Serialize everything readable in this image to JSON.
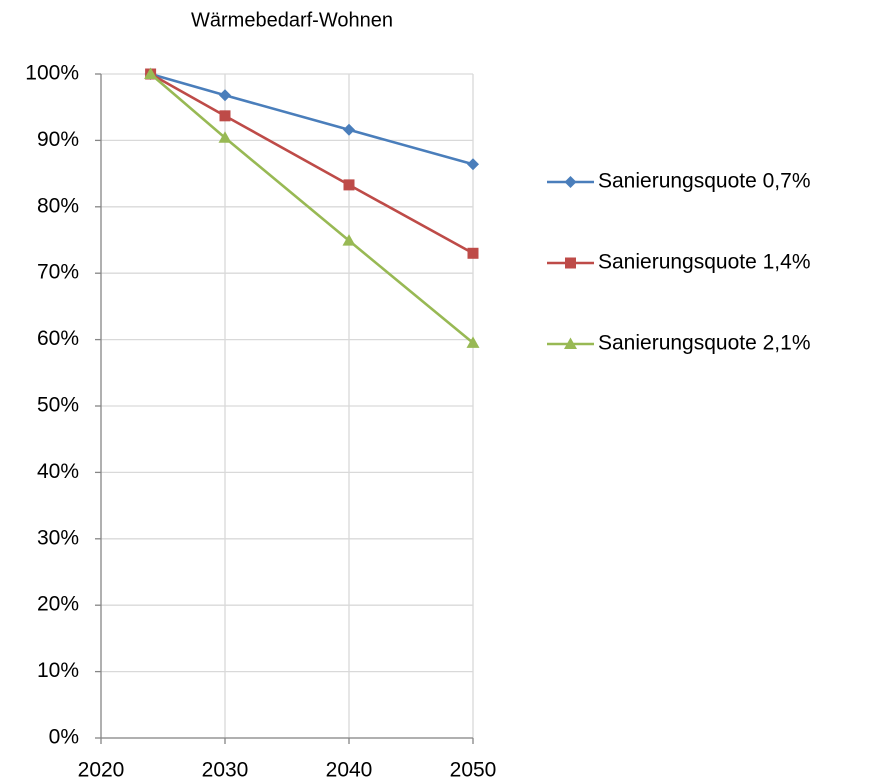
{
  "chart_data": {
    "type": "line",
    "title": "Wärmebedarf-Wohnen",
    "x": [
      2024,
      2030,
      2040,
      2050
    ],
    "xlim": [
      2020,
      2050
    ],
    "xticks": [
      2020,
      2030,
      2040,
      2050
    ],
    "ylim": [
      0,
      100
    ],
    "yticks": [
      {
        "value": 0,
        "label": "0%"
      },
      {
        "value": 10,
        "label": "10%"
      },
      {
        "value": 20,
        "label": "20%"
      },
      {
        "value": 30,
        "label": "30%"
      },
      {
        "value": 40,
        "label": "40%"
      },
      {
        "value": 50,
        "label": "50%"
      },
      {
        "value": 60,
        "label": "60%"
      },
      {
        "value": 70,
        "label": "70%"
      },
      {
        "value": 80,
        "label": "80%"
      },
      {
        "value": 90,
        "label": "90%"
      },
      {
        "value": 100,
        "label": "100%"
      }
    ],
    "grid": true,
    "legend": "right",
    "series": [
      {
        "name": "Sanierungsquote 0,7%",
        "color": "#4a7ebb",
        "marker": "diamond",
        "values": [
          100,
          96.8,
          91.6,
          86.4
        ]
      },
      {
        "name": "Sanierungsquote 1,4%",
        "color": "#be4b48",
        "marker": "square",
        "values": [
          100,
          93.7,
          83.3,
          73.0
        ]
      },
      {
        "name": "Sanierungsquote 2,1%",
        "color": "#98b954",
        "marker": "triangle",
        "values": [
          100,
          90.4,
          74.9,
          59.5
        ]
      }
    ]
  }
}
